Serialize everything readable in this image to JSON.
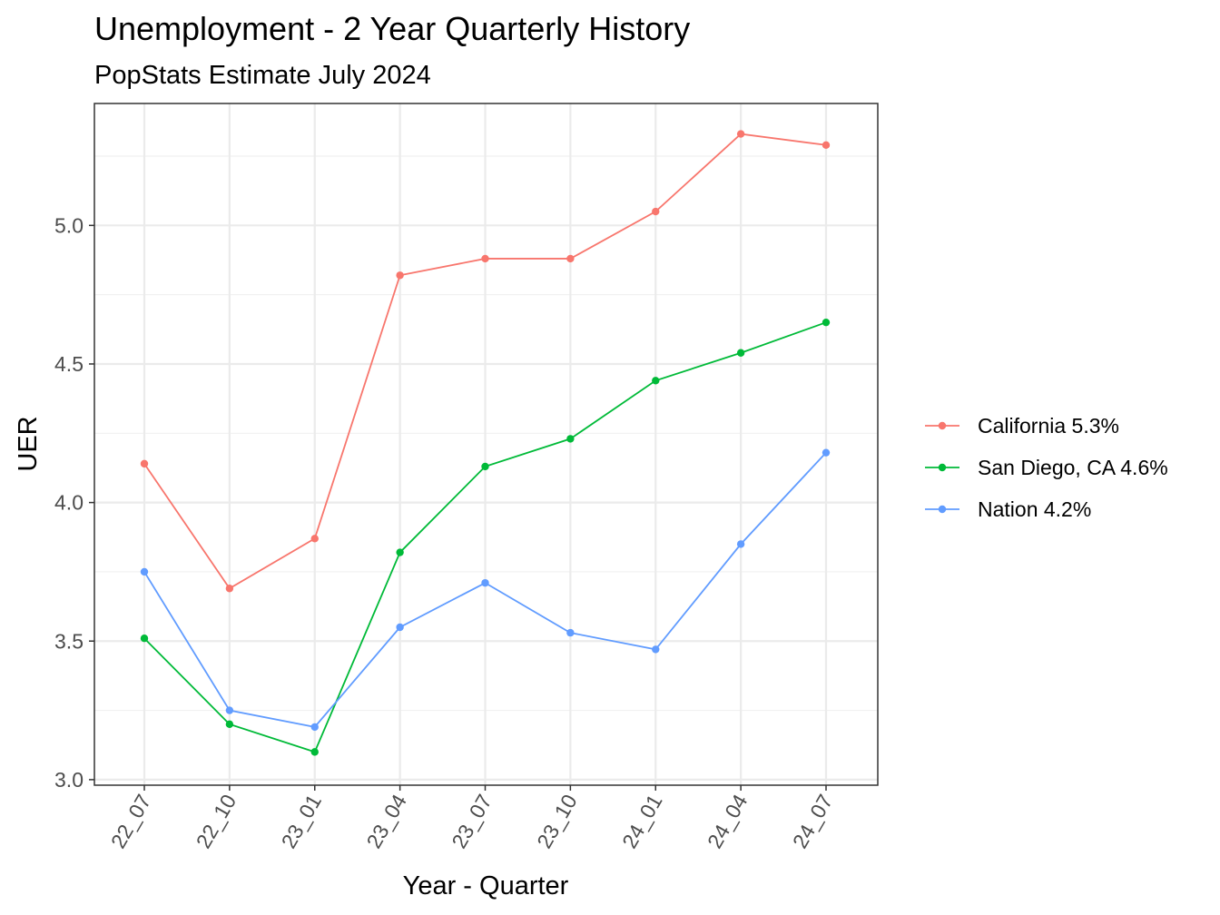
{
  "chart_data": {
    "type": "line",
    "title": "Unemployment - 2 Year Quarterly History",
    "subtitle": "PopStats Estimate July 2024",
    "xlabel": "Year - Quarter",
    "ylabel": "UER",
    "categories": [
      "22_07",
      "22_10",
      "23_01",
      "23_04",
      "23_07",
      "23_10",
      "24_01",
      "24_04",
      "24_07"
    ],
    "ylim": [
      2.98,
      5.44
    ],
    "yticks": [
      "3.0",
      "3.5",
      "4.0",
      "4.5",
      "5.0"
    ],
    "ytick_values": [
      3.0,
      3.5,
      4.0,
      4.5,
      5.0
    ],
    "grid": true,
    "legend_position": "right",
    "series": [
      {
        "name": "California 5.3%",
        "color": "#F8766D",
        "values": [
          4.14,
          3.69,
          3.87,
          4.82,
          4.88,
          4.88,
          5.05,
          5.33,
          5.29
        ]
      },
      {
        "name": "San Diego, CA 4.6%",
        "color": "#00BA38",
        "values": [
          3.51,
          3.2,
          3.1,
          3.82,
          4.13,
          4.23,
          4.44,
          4.54,
          4.65
        ]
      },
      {
        "name": "Nation 4.2%",
        "color": "#619CFF",
        "values": [
          3.75,
          3.25,
          3.19,
          3.55,
          3.71,
          3.53,
          3.47,
          3.85,
          4.18
        ]
      }
    ]
  }
}
